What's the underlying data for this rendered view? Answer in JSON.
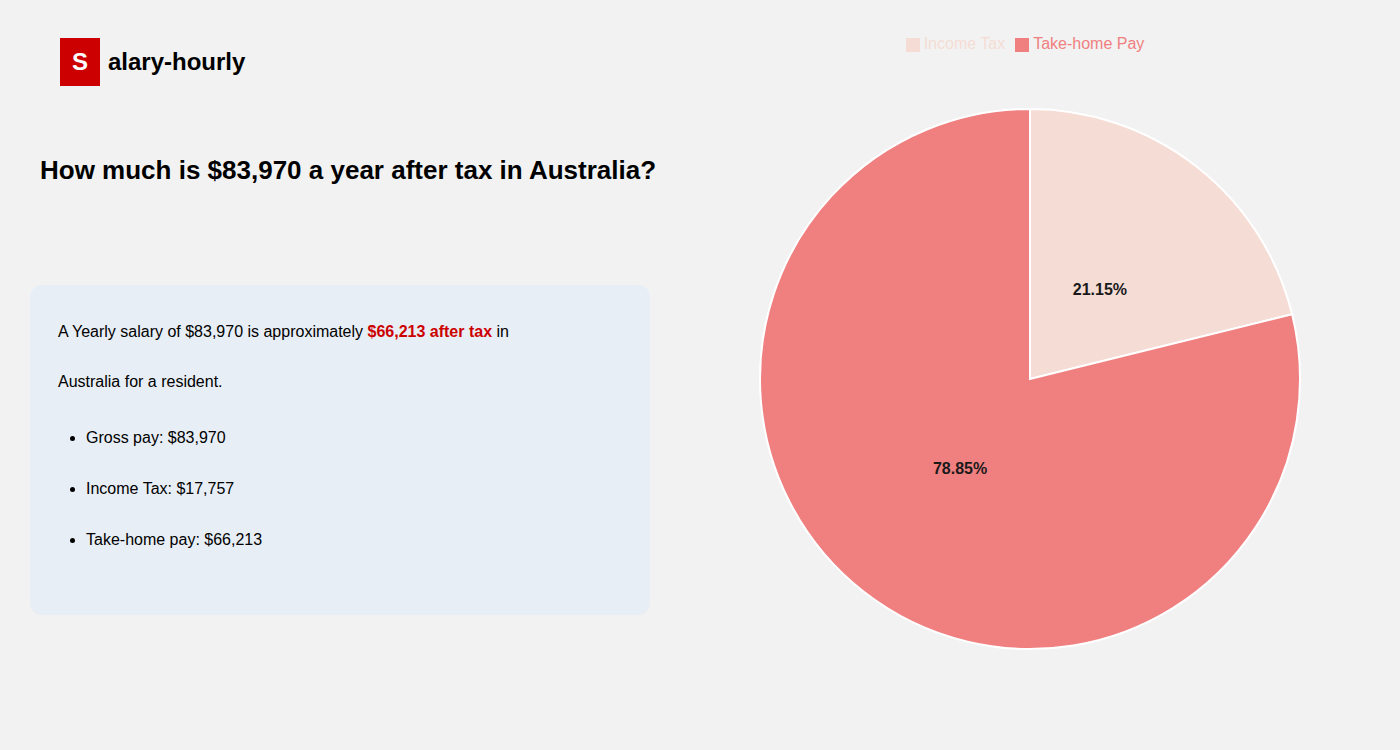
{
  "chart_data": {
    "type": "pie",
    "title": "How much is $83,970 a year after tax in Australia?",
    "categories": [
      "Income Tax",
      "Take-home Pay"
    ],
    "values": [
      21.15,
      78.85
    ],
    "value_labels": [
      "21.15%",
      "78.85%"
    ],
    "colors": [
      "#f5ddd5",
      "#f08080"
    ],
    "data_labels": true,
    "legend": "top",
    "annotations": [
      {
        "text": "S",
        "color": "#cc0000"
      },
      {
        "text": "alary-hourly"
      },
      {
        "text": "A Yearly salary of $83,970 is approximately "
      },
      {
        "text": "$66,213 after tax",
        "color": "#cc0000"
      },
      {
        "text": " in"
      },
      {
        "text": "Australia for a resident."
      },
      {
        "text": "Gross pay: $83,970"
      },
      {
        "text": "Income Tax: $17,757"
      },
      {
        "text": "Take-home pay: $66,213"
      }
    ]
  }
}
